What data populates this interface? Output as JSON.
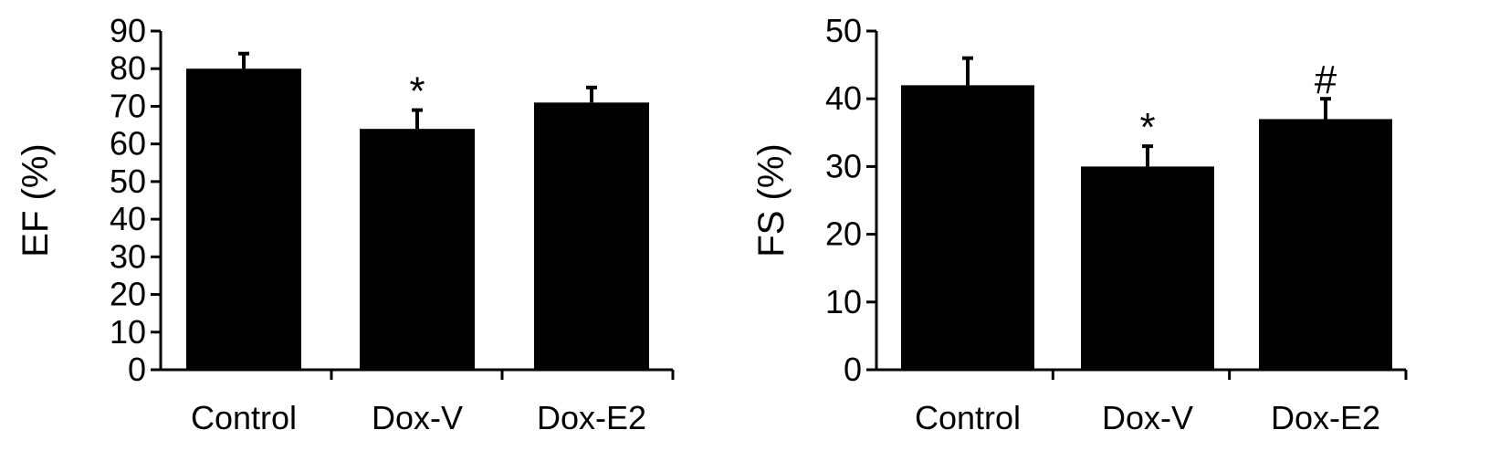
{
  "chart_data": [
    {
      "type": "bar",
      "title": "",
      "xlabel": "",
      "ylabel": "EF (%)",
      "categories": [
        "Control",
        "Dox-V",
        "Dox-E2"
      ],
      "values": [
        80,
        64,
        71
      ],
      "error_bars": [
        4,
        5,
        4
      ],
      "annotations": [
        "",
        "*",
        ""
      ],
      "ylim": [
        0,
        90
      ],
      "yticks": [
        0,
        10,
        20,
        30,
        40,
        50,
        60,
        70,
        80,
        90
      ],
      "bar_color": "#000000",
      "grid": false,
      "legend": "none"
    },
    {
      "type": "bar",
      "title": "",
      "xlabel": "",
      "ylabel": "FS (%)",
      "categories": [
        "Control",
        "Dox-V",
        "Dox-E2"
      ],
      "values": [
        42,
        30,
        37
      ],
      "error_bars": [
        4,
        3,
        3
      ],
      "annotations": [
        "",
        "*",
        "#"
      ],
      "ylim": [
        0,
        50
      ],
      "yticks": [
        0,
        10,
        20,
        30,
        40,
        50
      ],
      "bar_color": "#000000",
      "grid": false,
      "legend": "none"
    }
  ]
}
